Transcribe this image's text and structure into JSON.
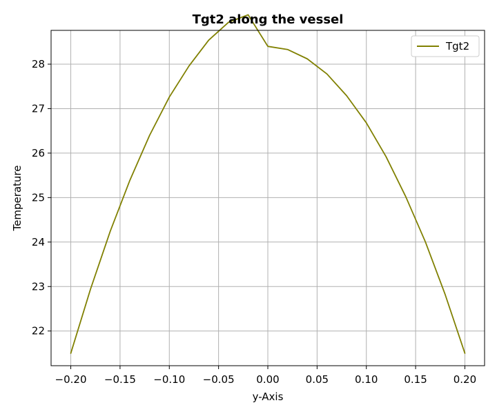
{
  "chart_data": {
    "type": "line",
    "title": "Tgt2 along the vessel",
    "xlabel": "y-Axis",
    "ylabel": "Temperature",
    "xlim": [
      -0.22,
      0.22
    ],
    "ylim": [
      21.22,
      28.76
    ],
    "x_ticks": [
      -0.2,
      -0.15,
      -0.1,
      -0.05,
      0.0,
      0.05,
      0.1,
      0.15,
      0.2
    ],
    "x_tick_labels": [
      "−0.20",
      "−0.15",
      "−0.10",
      "−0.05",
      "0.00",
      "0.05",
      "0.10",
      "0.15",
      "0.20"
    ],
    "y_ticks": [
      22,
      23,
      24,
      25,
      26,
      27,
      28
    ],
    "y_tick_labels": [
      "22",
      "23",
      "24",
      "25",
      "26",
      "27",
      "28"
    ],
    "grid": true,
    "legend_position": "top-right",
    "series": [
      {
        "name": "Tgt2",
        "color": "#808000",
        "x": [
          -0.2,
          -0.18,
          -0.16,
          -0.14,
          -0.12,
          -0.1,
          -0.08,
          -0.06,
          -0.04,
          -0.02,
          0.0,
          0.02,
          0.04,
          0.06,
          0.08,
          0.1,
          0.12,
          0.14,
          0.16,
          0.18,
          0.2
        ],
        "y": [
          21.5,
          22.94,
          24.24,
          25.39,
          26.4,
          27.26,
          27.96,
          28.54,
          28.94,
          29.11,
          28.4,
          28.33,
          28.12,
          27.78,
          27.29,
          26.68,
          25.92,
          25.02,
          24.0,
          22.82,
          21.5
        ]
      }
    ]
  }
}
